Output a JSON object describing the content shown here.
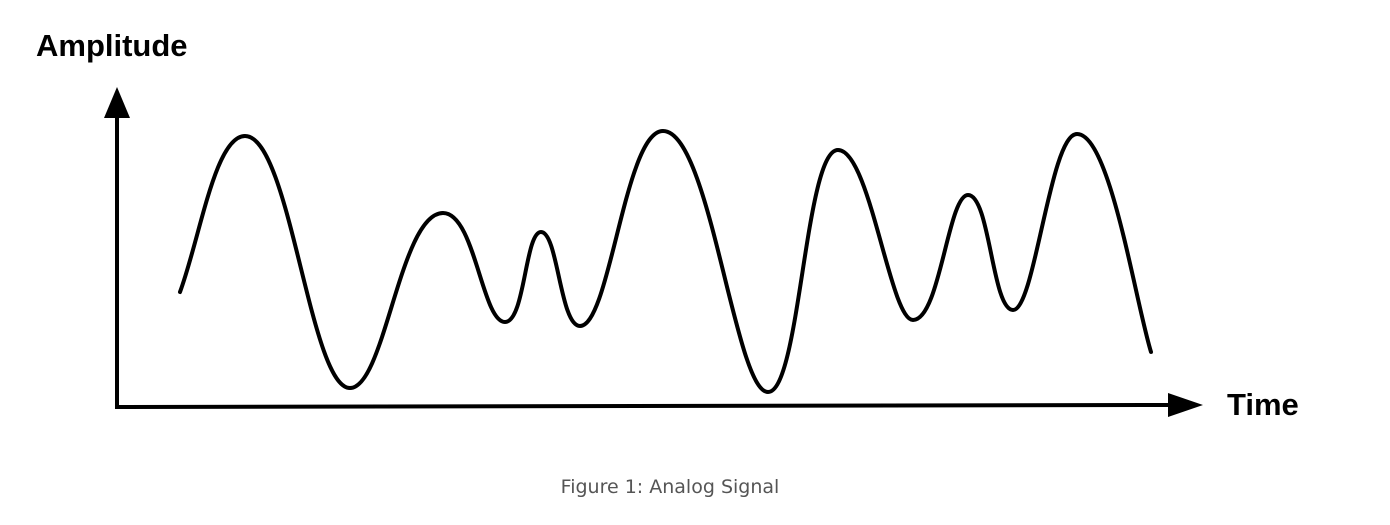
{
  "diagram": {
    "y_axis_label": "Amplitude",
    "x_axis_label": "Time",
    "caption": "Figure 1: Analog Signal",
    "line_color": "#000000",
    "caption_color": "#555555"
  }
}
